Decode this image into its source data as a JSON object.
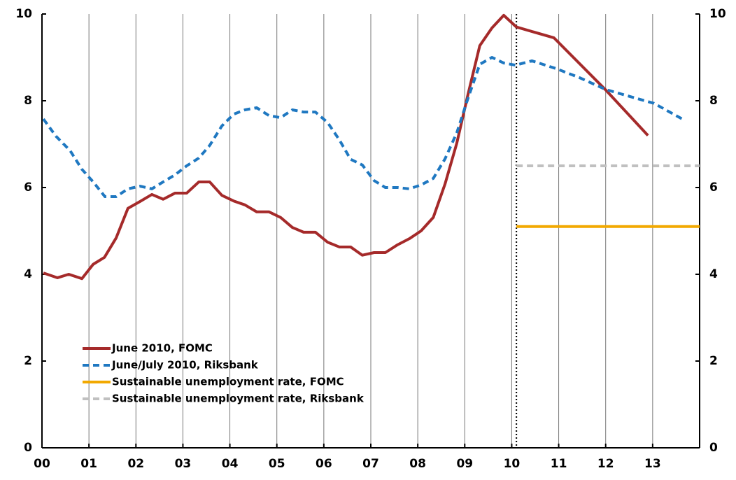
{
  "chart_data": {
    "type": "line",
    "xlim": [
      2000,
      2014
    ],
    "xticks": [
      {
        "value": 2000,
        "label": "00"
      },
      {
        "value": 2001,
        "label": "01"
      },
      {
        "value": 2002,
        "label": "02"
      },
      {
        "value": 2003,
        "label": "03"
      },
      {
        "value": 2004,
        "label": "04"
      },
      {
        "value": 2005,
        "label": "05"
      },
      {
        "value": 2006,
        "label": "06"
      },
      {
        "value": 2007,
        "label": "07"
      },
      {
        "value": 2008,
        "label": "08"
      },
      {
        "value": 2009,
        "label": "09"
      },
      {
        "value": 2010,
        "label": "10"
      },
      {
        "value": 2011,
        "label": "11"
      },
      {
        "value": 2012,
        "label": "12"
      },
      {
        "value": 2013,
        "label": "13"
      }
    ],
    "ylim": [
      0,
      10
    ],
    "yticks": [
      0,
      2,
      4,
      6,
      8,
      10
    ],
    "y2lim": [
      0,
      10
    ],
    "y2ticks": [
      0,
      2,
      4,
      6,
      8,
      10
    ],
    "grid": "x",
    "legend": "lower left",
    "vline": 2010.1,
    "series": [
      {
        "name": "June 2010, FOMC",
        "color": "#a52a2a",
        "dash": false,
        "x": [
          2000.03,
          2000.33,
          2000.57,
          2000.85,
          2001.09,
          2001.33,
          2001.58,
          2001.83,
          2002.09,
          2002.34,
          2002.58,
          2002.83,
          2003.08,
          2003.34,
          2003.57,
          2003.83,
          2004.08,
          2004.32,
          2004.57,
          2004.83,
          2005.08,
          2005.33,
          2005.57,
          2005.82,
          2006.08,
          2006.33,
          2006.57,
          2006.82,
          2007.07,
          2007.31,
          2007.57,
          2007.82,
          2008.07,
          2008.33,
          2008.58,
          2008.83,
          2009.07,
          2009.32,
          2009.58,
          2009.83,
          2010.1,
          2010.9,
          2012.0,
          2012.9
        ],
        "values": [
          4.03,
          3.92,
          4.0,
          3.9,
          4.23,
          4.39,
          4.84,
          5.52,
          5.68,
          5.84,
          5.73,
          5.87,
          5.87,
          6.13,
          6.13,
          5.82,
          5.69,
          5.6,
          5.44,
          5.44,
          5.31,
          5.08,
          4.97,
          4.97,
          4.74,
          4.63,
          4.63,
          4.44,
          4.5,
          4.5,
          4.68,
          4.82,
          5.0,
          5.31,
          6.08,
          7.02,
          8.15,
          9.27,
          9.68,
          9.97,
          9.7,
          9.45,
          8.25,
          7.2
        ]
      },
      {
        "name": "June/July 2010, Riksbank",
        "color": "#1f78c1",
        "dash": true,
        "x": [
          2000.03,
          2000.3,
          2000.6,
          2000.85,
          2001.09,
          2001.34,
          2001.58,
          2001.83,
          2002.09,
          2002.34,
          2002.58,
          2002.83,
          2003.08,
          2003.34,
          2003.57,
          2003.83,
          2004.08,
          2004.32,
          2004.57,
          2004.83,
          2005.08,
          2005.33,
          2005.57,
          2005.82,
          2006.08,
          2006.33,
          2006.57,
          2006.82,
          2007.07,
          2007.31,
          2007.57,
          2007.82,
          2008.07,
          2008.33,
          2008.58,
          2008.83,
          2009.07,
          2009.32,
          2009.58,
          2009.83,
          2010.08,
          2010.43,
          2010.95,
          2011.47,
          2012.0,
          2012.51,
          2013.03,
          2013.63
        ],
        "values": [
          7.58,
          7.18,
          6.85,
          6.42,
          6.13,
          5.79,
          5.79,
          5.97,
          6.03,
          5.97,
          6.13,
          6.29,
          6.5,
          6.68,
          6.97,
          7.42,
          7.69,
          7.79,
          7.84,
          7.66,
          7.61,
          7.79,
          7.74,
          7.74,
          7.5,
          7.1,
          6.65,
          6.52,
          6.16,
          6.0,
          6.0,
          5.97,
          6.06,
          6.21,
          6.66,
          7.26,
          8.06,
          8.84,
          9.0,
          8.87,
          8.82,
          8.92,
          8.74,
          8.52,
          8.26,
          8.1,
          7.94,
          7.58
        ]
      },
      {
        "name": "Sustainable unemployment rate, FOMC",
        "color": "#f2a900",
        "dash": false,
        "x": [
          2010.1,
          2014
        ],
        "values": [
          5.1,
          5.1
        ]
      },
      {
        "name": "Sustainable unemployment rate, Riksbank",
        "color": "#c0c0c0",
        "dash": true,
        "x": [
          2010.1,
          2014
        ],
        "values": [
          6.5,
          6.5
        ]
      }
    ]
  }
}
